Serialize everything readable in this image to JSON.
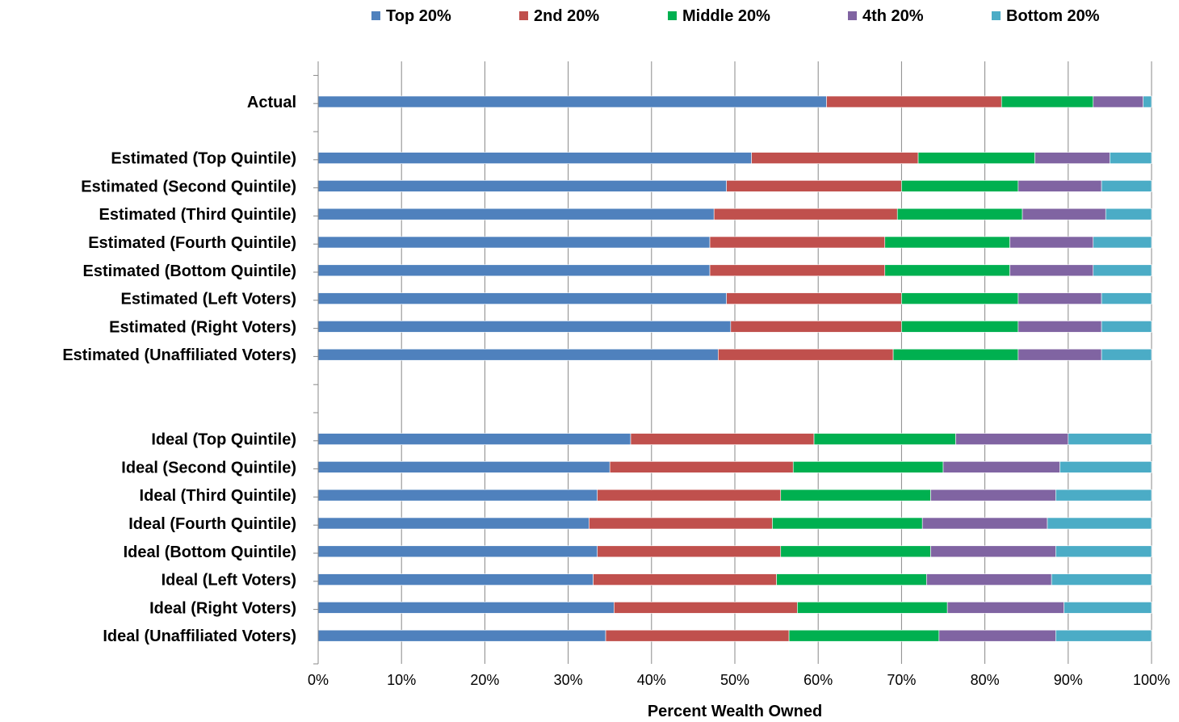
{
  "chart_data": {
    "type": "bar",
    "orientation": "horizontal",
    "stacked": true,
    "title": "",
    "xlabel": "Percent Wealth Owned",
    "ylabel": "",
    "xlim": [
      0,
      100
    ],
    "x_ticks": [
      "0%",
      "10%",
      "20%",
      "30%",
      "40%",
      "50%",
      "60%",
      "70%",
      "80%",
      "90%",
      "100%"
    ],
    "grid": "vertical",
    "legend_position": "top",
    "categories": [
      "Actual",
      "",
      "Estimated (Top Quintile)",
      "Estimated (Second Quintile)",
      "Estimated (Third Quintile)",
      "Estimated (Fourth Quintile)",
      "Estimated (Bottom Quintile)",
      "Estimated (Left Voters)",
      "Estimated (Right Voters)",
      "Estimated (Unaffiliated Voters)",
      "",
      "",
      "Ideal (Top Quintile)",
      "Ideal (Second Quintile)",
      "Ideal (Third Quintile)",
      "Ideal (Fourth Quintile)",
      "Ideal (Bottom Quintile)",
      "Ideal (Left Voters)",
      "Ideal (Right Voters)",
      "Ideal (Unaffiliated Voters)"
    ],
    "series": [
      {
        "name": "Top 20%",
        "color": "#4F81BD",
        "values": [
          61,
          null,
          52,
          49,
          47.5,
          47,
          47,
          49,
          49.5,
          48,
          null,
          null,
          37.5,
          35,
          33.5,
          32.5,
          33.5,
          33,
          35.5,
          34.5
        ]
      },
      {
        "name": "2nd 20%",
        "color": "#C0504D",
        "values": [
          21,
          null,
          20,
          21,
          22,
          21,
          21,
          21,
          20.5,
          21,
          null,
          null,
          22,
          22,
          22,
          22,
          22,
          22,
          22,
          22
        ]
      },
      {
        "name": "Middle 20%",
        "color": "#00B050",
        "values": [
          11,
          null,
          14,
          14,
          15,
          15,
          15,
          14,
          14,
          15,
          null,
          null,
          17,
          18,
          18,
          18,
          18,
          18,
          18,
          18
        ]
      },
      {
        "name": "4th 20%",
        "color": "#8064A2",
        "values": [
          6,
          null,
          9,
          10,
          10,
          10,
          10,
          10,
          10,
          10,
          null,
          null,
          13.5,
          14,
          15,
          15,
          15,
          15,
          14,
          14
        ]
      },
      {
        "name": "Bottom 20%",
        "color": "#4BACC6",
        "values": [
          1,
          null,
          5,
          6,
          5.5,
          7,
          7,
          6,
          6,
          6,
          null,
          null,
          10,
          11,
          11.5,
          12.5,
          11.5,
          12,
          10.5,
          11.5
        ]
      }
    ]
  }
}
